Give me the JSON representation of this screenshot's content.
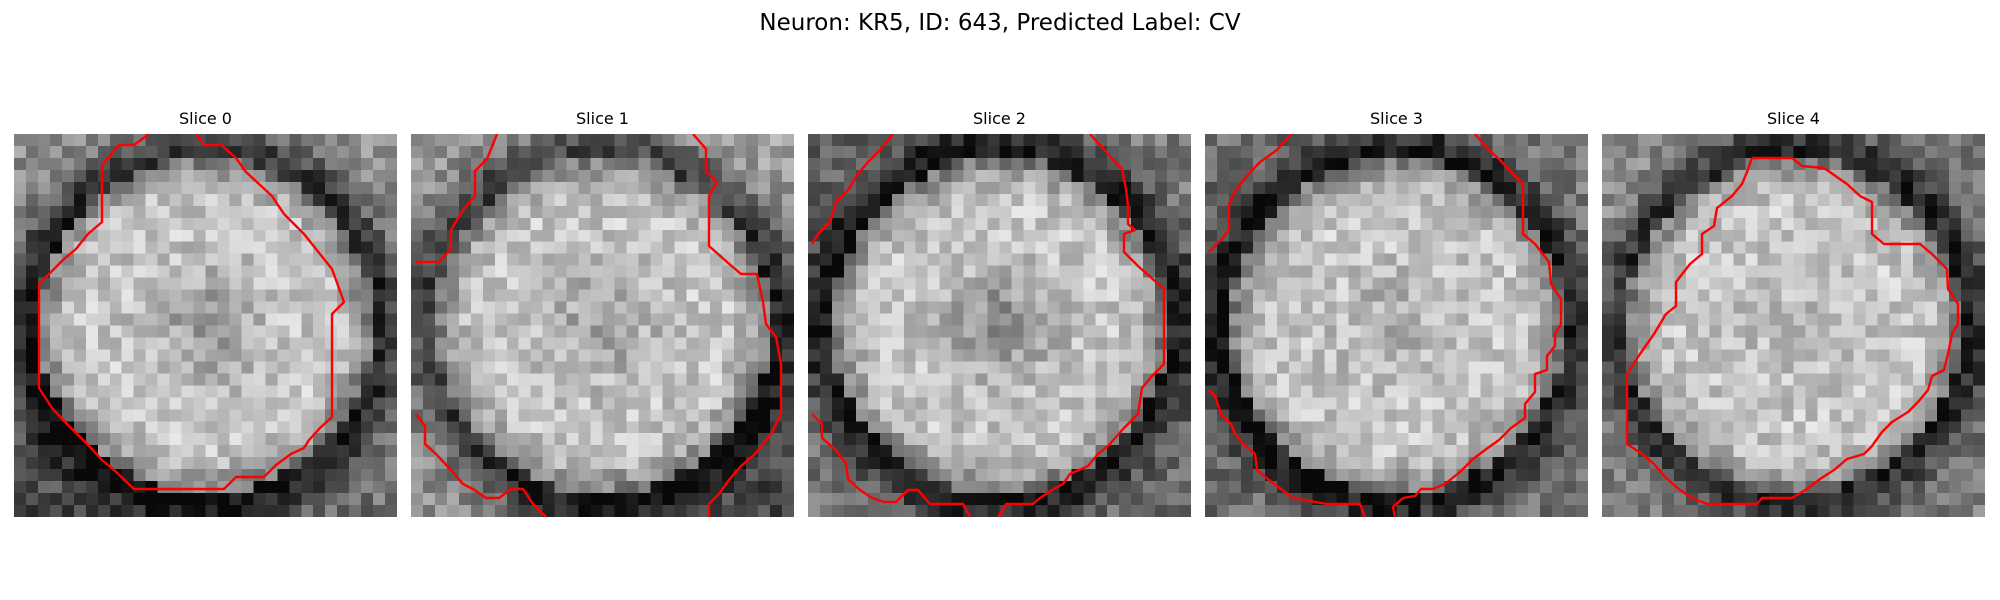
{
  "figure": {
    "title": "Neuron: KR5, ID: 643, Predicted Label: CV"
  },
  "panels": [
    {
      "title": "Slice 0",
      "seed": 11,
      "darkCorners": [
        0.35,
        0.35,
        0.85,
        0.55
      ],
      "centerDarkness": 0.35,
      "lineColor": "#ff0000"
    },
    {
      "title": "Slice 1",
      "seed": 23,
      "darkCorners": [
        0.35,
        0.2,
        0.35,
        0.9
      ],
      "centerDarkness": 0.3,
      "lineColor": "#ff0000"
    },
    {
      "title": "Slice 2",
      "seed": 37,
      "darkCorners": [
        0.65,
        0.5,
        0.55,
        0.6
      ],
      "centerDarkness": 0.45,
      "lineColor": "#ff0000"
    },
    {
      "title": "Slice 3",
      "seed": 41,
      "darkCorners": [
        0.6,
        0.5,
        0.6,
        0.55
      ],
      "centerDarkness": 0.2,
      "lineColor": "#ff0000"
    },
    {
      "title": "Slice 4",
      "seed": 53,
      "darkCorners": [
        0.35,
        0.55,
        0.45,
        0.5
      ],
      "centerDarkness": 0.1,
      "lineColor": "#ff0000"
    }
  ]
}
